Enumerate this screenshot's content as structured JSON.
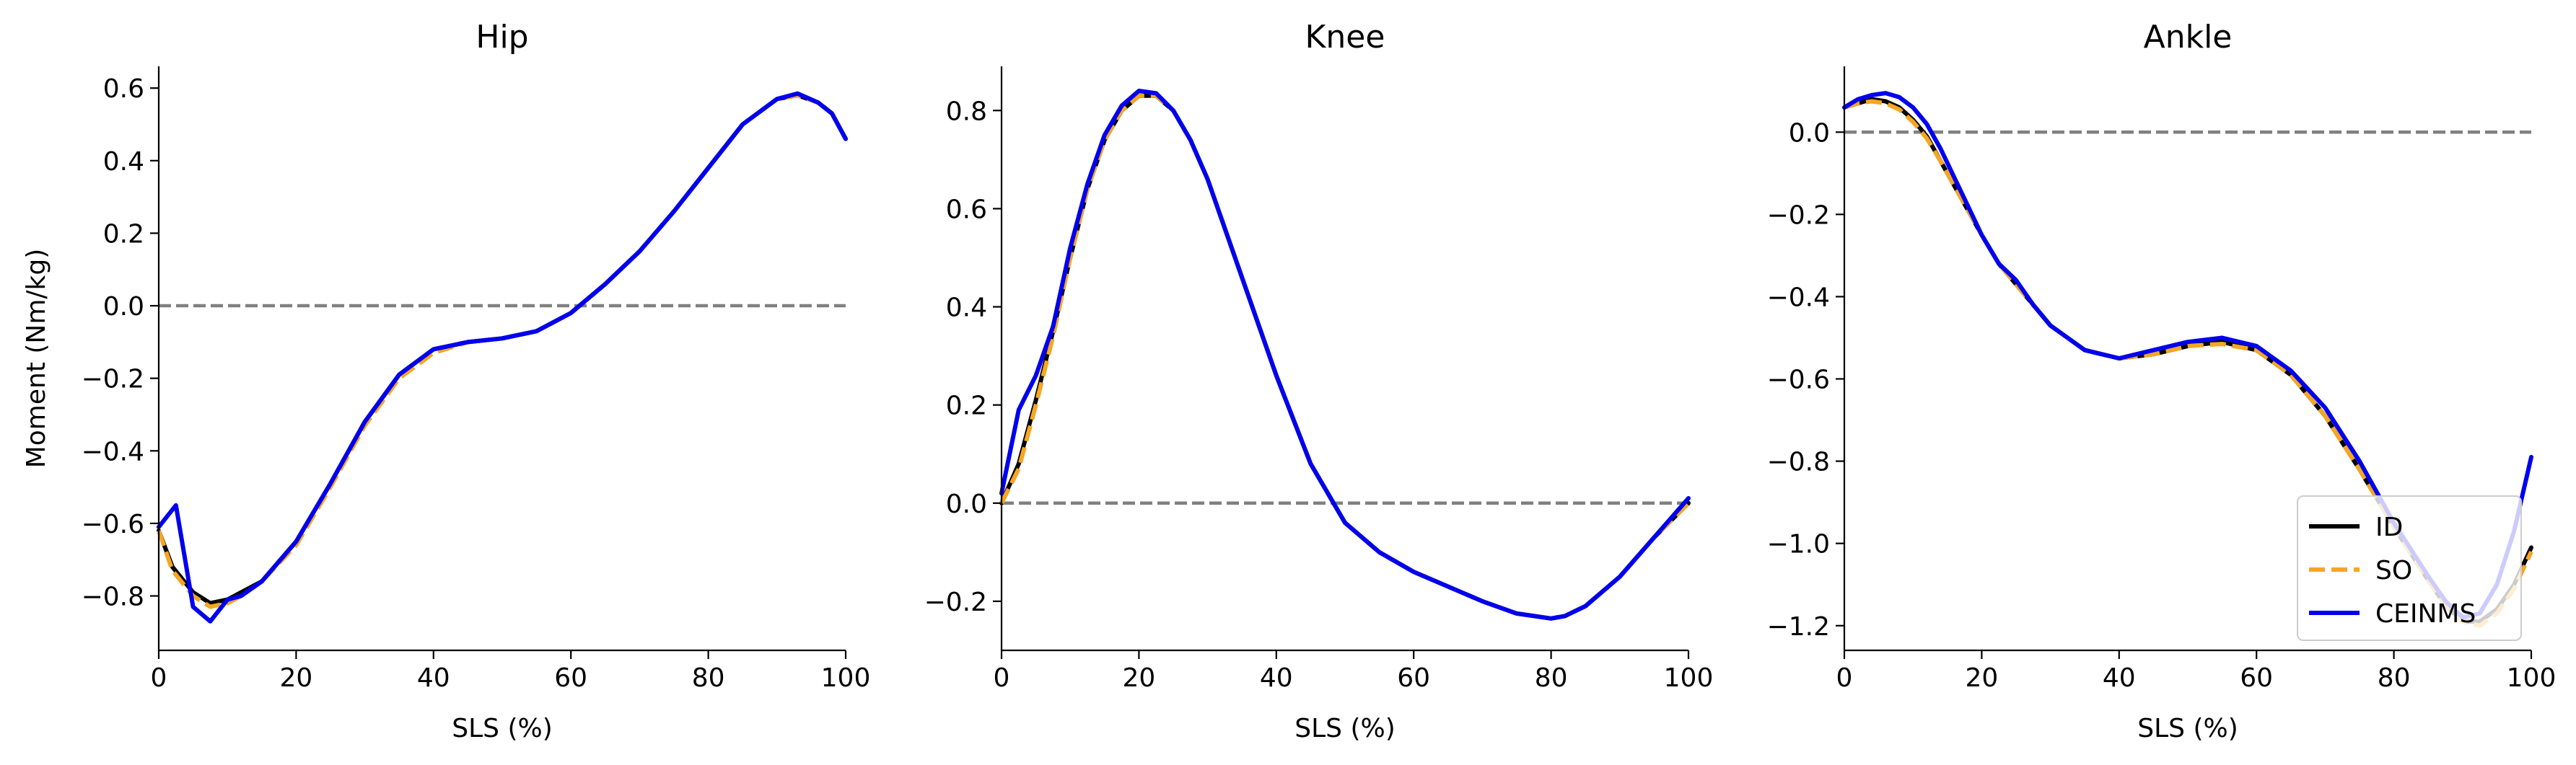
{
  "chart_data": [
    {
      "type": "line",
      "title": "Hip",
      "xlabel": "SLS (%)",
      "ylabel": "Moment (Nm/kg)",
      "xlim": [
        0,
        100
      ],
      "ylim": [
        -0.95,
        0.66
      ],
      "xticks": [
        0,
        20,
        40,
        60,
        80,
        100
      ],
      "xtick_labels": [
        "0",
        "20",
        "40",
        "60",
        "80",
        "100"
      ],
      "yticks": [
        -0.8,
        -0.6,
        -0.4,
        -0.2,
        0.0,
        0.2,
        0.4,
        0.6
      ],
      "ytick_labels": [
        "−0.8",
        "−0.6",
        "−0.4",
        "−0.2",
        "0.0",
        "0.2",
        "0.4",
        "0.6"
      ],
      "reference_line": 0,
      "series": [
        {
          "name": "ID",
          "color": "#000000",
          "style": "solid",
          "x": [
            0,
            2,
            5,
            7.5,
            10,
            12,
            15,
            20,
            25,
            30,
            35,
            40,
            45,
            50,
            55,
            60,
            65,
            70,
            75,
            80,
            85,
            90,
            93,
            96,
            98,
            100
          ],
          "y": [
            -0.62,
            -0.72,
            -0.79,
            -0.82,
            -0.81,
            -0.79,
            -0.76,
            -0.65,
            -0.49,
            -0.32,
            -0.19,
            -0.12,
            -0.1,
            -0.09,
            -0.07,
            -0.02,
            0.06,
            0.15,
            0.26,
            0.38,
            0.5,
            0.57,
            0.58,
            0.56,
            0.53,
            0.46
          ]
        },
        {
          "name": "SO",
          "color": "#F5A623",
          "style": "dashed",
          "x": [
            0,
            2,
            5,
            7.5,
            10,
            12,
            15,
            20,
            25,
            30,
            35,
            40,
            45,
            50,
            55,
            60,
            65,
            70,
            75,
            80,
            85,
            90,
            93,
            96,
            98,
            100
          ],
          "y": [
            -0.62,
            -0.73,
            -0.8,
            -0.83,
            -0.82,
            -0.8,
            -0.76,
            -0.66,
            -0.5,
            -0.33,
            -0.2,
            -0.13,
            -0.1,
            -0.09,
            -0.07,
            -0.02,
            0.06,
            0.15,
            0.26,
            0.38,
            0.5,
            0.57,
            0.58,
            0.56,
            0.53,
            0.46
          ]
        },
        {
          "name": "CEINMS",
          "color": "#0000EE",
          "style": "solid",
          "x": [
            0,
            2.5,
            5,
            7.5,
            10,
            12,
            15,
            20,
            25,
            30,
            35,
            40,
            45,
            50,
            55,
            60,
            65,
            70,
            75,
            80,
            85,
            90,
            93,
            96,
            98,
            100
          ],
          "y": [
            -0.61,
            -0.55,
            -0.83,
            -0.87,
            -0.81,
            -0.8,
            -0.76,
            -0.65,
            -0.49,
            -0.32,
            -0.19,
            -0.12,
            -0.1,
            -0.09,
            -0.07,
            -0.02,
            0.06,
            0.15,
            0.26,
            0.38,
            0.5,
            0.57,
            0.585,
            0.56,
            0.53,
            0.46
          ]
        }
      ]
    },
    {
      "type": "line",
      "title": "Knee",
      "xlabel": "SLS (%)",
      "ylabel": "",
      "xlim": [
        0,
        100
      ],
      "ylim": [
        -0.3,
        0.89
      ],
      "xticks": [
        0,
        20,
        40,
        60,
        80,
        100
      ],
      "xtick_labels": [
        "0",
        "20",
        "40",
        "60",
        "80",
        "100"
      ],
      "yticks": [
        -0.2,
        0.0,
        0.2,
        0.4,
        0.6,
        0.8
      ],
      "ytick_labels": [
        "−0.2",
        "0.0",
        "0.2",
        "0.4",
        "0.6",
        "0.8"
      ],
      "reference_line": 0,
      "series": [
        {
          "name": "ID",
          "color": "#000000",
          "style": "solid",
          "x": [
            0,
            2.5,
            5,
            7.5,
            10,
            12.5,
            15,
            17.5,
            20,
            22.5,
            25,
            27.5,
            30,
            35,
            40,
            45,
            50,
            55,
            60,
            65,
            70,
            75,
            80,
            82,
            85,
            90,
            95,
            100
          ],
          "y": [
            0.0,
            0.08,
            0.21,
            0.35,
            0.5,
            0.64,
            0.74,
            0.8,
            0.83,
            0.83,
            0.8,
            0.74,
            0.66,
            0.46,
            0.26,
            0.08,
            -0.04,
            -0.1,
            -0.14,
            -0.17,
            -0.2,
            -0.225,
            -0.235,
            -0.23,
            -0.21,
            -0.15,
            -0.07,
            0.0
          ]
        },
        {
          "name": "SO",
          "color": "#F5A623",
          "style": "dashed",
          "x": [
            0,
            2.5,
            5,
            7.5,
            10,
            12.5,
            15,
            17.5,
            20,
            22.5,
            25,
            27.5,
            30,
            35,
            40,
            45,
            50,
            55,
            60,
            65,
            70,
            75,
            80,
            82,
            85,
            90,
            95,
            100
          ],
          "y": [
            0.0,
            0.07,
            0.2,
            0.34,
            0.5,
            0.64,
            0.74,
            0.8,
            0.83,
            0.83,
            0.8,
            0.74,
            0.66,
            0.46,
            0.26,
            0.08,
            -0.04,
            -0.1,
            -0.14,
            -0.17,
            -0.2,
            -0.225,
            -0.235,
            -0.23,
            -0.21,
            -0.15,
            -0.07,
            0.0
          ]
        },
        {
          "name": "CEINMS",
          "color": "#0000EE",
          "style": "solid",
          "x": [
            0,
            2.5,
            5,
            7.5,
            10,
            12.5,
            15,
            17.5,
            20,
            22.5,
            25,
            27.5,
            30,
            35,
            40,
            45,
            50,
            55,
            60,
            65,
            70,
            75,
            80,
            82,
            85,
            90,
            95,
            100
          ],
          "y": [
            0.02,
            0.19,
            0.26,
            0.36,
            0.52,
            0.65,
            0.75,
            0.81,
            0.84,
            0.835,
            0.8,
            0.74,
            0.66,
            0.46,
            0.26,
            0.08,
            -0.04,
            -0.1,
            -0.14,
            -0.17,
            -0.2,
            -0.225,
            -0.235,
            -0.23,
            -0.21,
            -0.15,
            -0.07,
            0.01
          ]
        }
      ]
    },
    {
      "type": "line",
      "title": "Ankle",
      "xlabel": "SLS (%)",
      "ylabel": "",
      "xlim": [
        0,
        100
      ],
      "ylim": [
        -1.26,
        0.16
      ],
      "xticks": [
        0,
        20,
        40,
        60,
        80,
        100
      ],
      "xtick_labels": [
        "0",
        "20",
        "40",
        "60",
        "80",
        "100"
      ],
      "yticks": [
        -1.2,
        -1.0,
        -0.8,
        -0.6,
        -0.4,
        -0.2,
        0.0
      ],
      "ytick_labels": [
        "−1.2",
        "−1.0",
        "−0.8",
        "−0.6",
        "−0.4",
        "−0.2",
        "0.0"
      ],
      "reference_line": 0,
      "legend": {
        "position": "lower-right",
        "entries": [
          "ID",
          "SO",
          "CEINMS"
        ]
      },
      "series": [
        {
          "name": "ID",
          "color": "#000000",
          "style": "solid",
          "x": [
            0,
            2,
            4,
            6,
            8,
            10,
            12,
            14,
            16,
            18,
            20,
            22.5,
            25,
            27.5,
            30,
            32.5,
            35,
            37.5,
            40,
            45,
            50,
            55,
            60,
            65,
            70,
            75,
            80,
            85,
            87.5,
            90,
            92.5,
            95,
            97.5,
            100
          ],
          "y": [
            0.06,
            0.07,
            0.08,
            0.075,
            0.06,
            0.03,
            -0.01,
            -0.07,
            -0.13,
            -0.19,
            -0.25,
            -0.32,
            -0.37,
            -0.42,
            -0.47,
            -0.5,
            -0.53,
            -0.54,
            -0.55,
            -0.54,
            -0.52,
            -0.51,
            -0.53,
            -0.59,
            -0.69,
            -0.82,
            -0.96,
            -1.09,
            -1.15,
            -1.19,
            -1.19,
            -1.16,
            -1.1,
            -1.01
          ]
        },
        {
          "name": "SO",
          "color": "#F5A623",
          "style": "dashed",
          "x": [
            0,
            2,
            4,
            6,
            8,
            10,
            12,
            14,
            16,
            18,
            20,
            22.5,
            25,
            27.5,
            30,
            32.5,
            35,
            37.5,
            40,
            45,
            50,
            55,
            60,
            65,
            70,
            75,
            80,
            85,
            87.5,
            90,
            92.5,
            95,
            97.5,
            100
          ],
          "y": [
            0.06,
            0.07,
            0.075,
            0.07,
            0.055,
            0.025,
            -0.015,
            -0.07,
            -0.13,
            -0.19,
            -0.25,
            -0.32,
            -0.37,
            -0.42,
            -0.47,
            -0.5,
            -0.53,
            -0.54,
            -0.55,
            -0.54,
            -0.52,
            -0.515,
            -0.53,
            -0.59,
            -0.69,
            -0.82,
            -0.96,
            -1.09,
            -1.15,
            -1.19,
            -1.2,
            -1.17,
            -1.11,
            -1.02
          ]
        },
        {
          "name": "CEINMS",
          "color": "#0000EE",
          "style": "solid",
          "x": [
            0,
            2,
            4,
            6,
            8,
            10,
            12,
            14,
            16,
            18,
            20,
            22.5,
            25,
            27.5,
            30,
            32.5,
            35,
            37.5,
            40,
            45,
            50,
            55,
            60,
            65,
            70,
            75,
            80,
            85,
            87.5,
            90,
            92.5,
            95,
            97.5,
            100
          ],
          "y": [
            0.06,
            0.08,
            0.09,
            0.095,
            0.085,
            0.06,
            0.02,
            -0.04,
            -0.11,
            -0.18,
            -0.25,
            -0.32,
            -0.36,
            -0.42,
            -0.47,
            -0.5,
            -0.53,
            -0.54,
            -0.55,
            -0.53,
            -0.51,
            -0.5,
            -0.52,
            -0.58,
            -0.67,
            -0.8,
            -0.95,
            -1.08,
            -1.14,
            -1.18,
            -1.17,
            -1.1,
            -0.97,
            -0.79
          ]
        }
      ]
    }
  ]
}
